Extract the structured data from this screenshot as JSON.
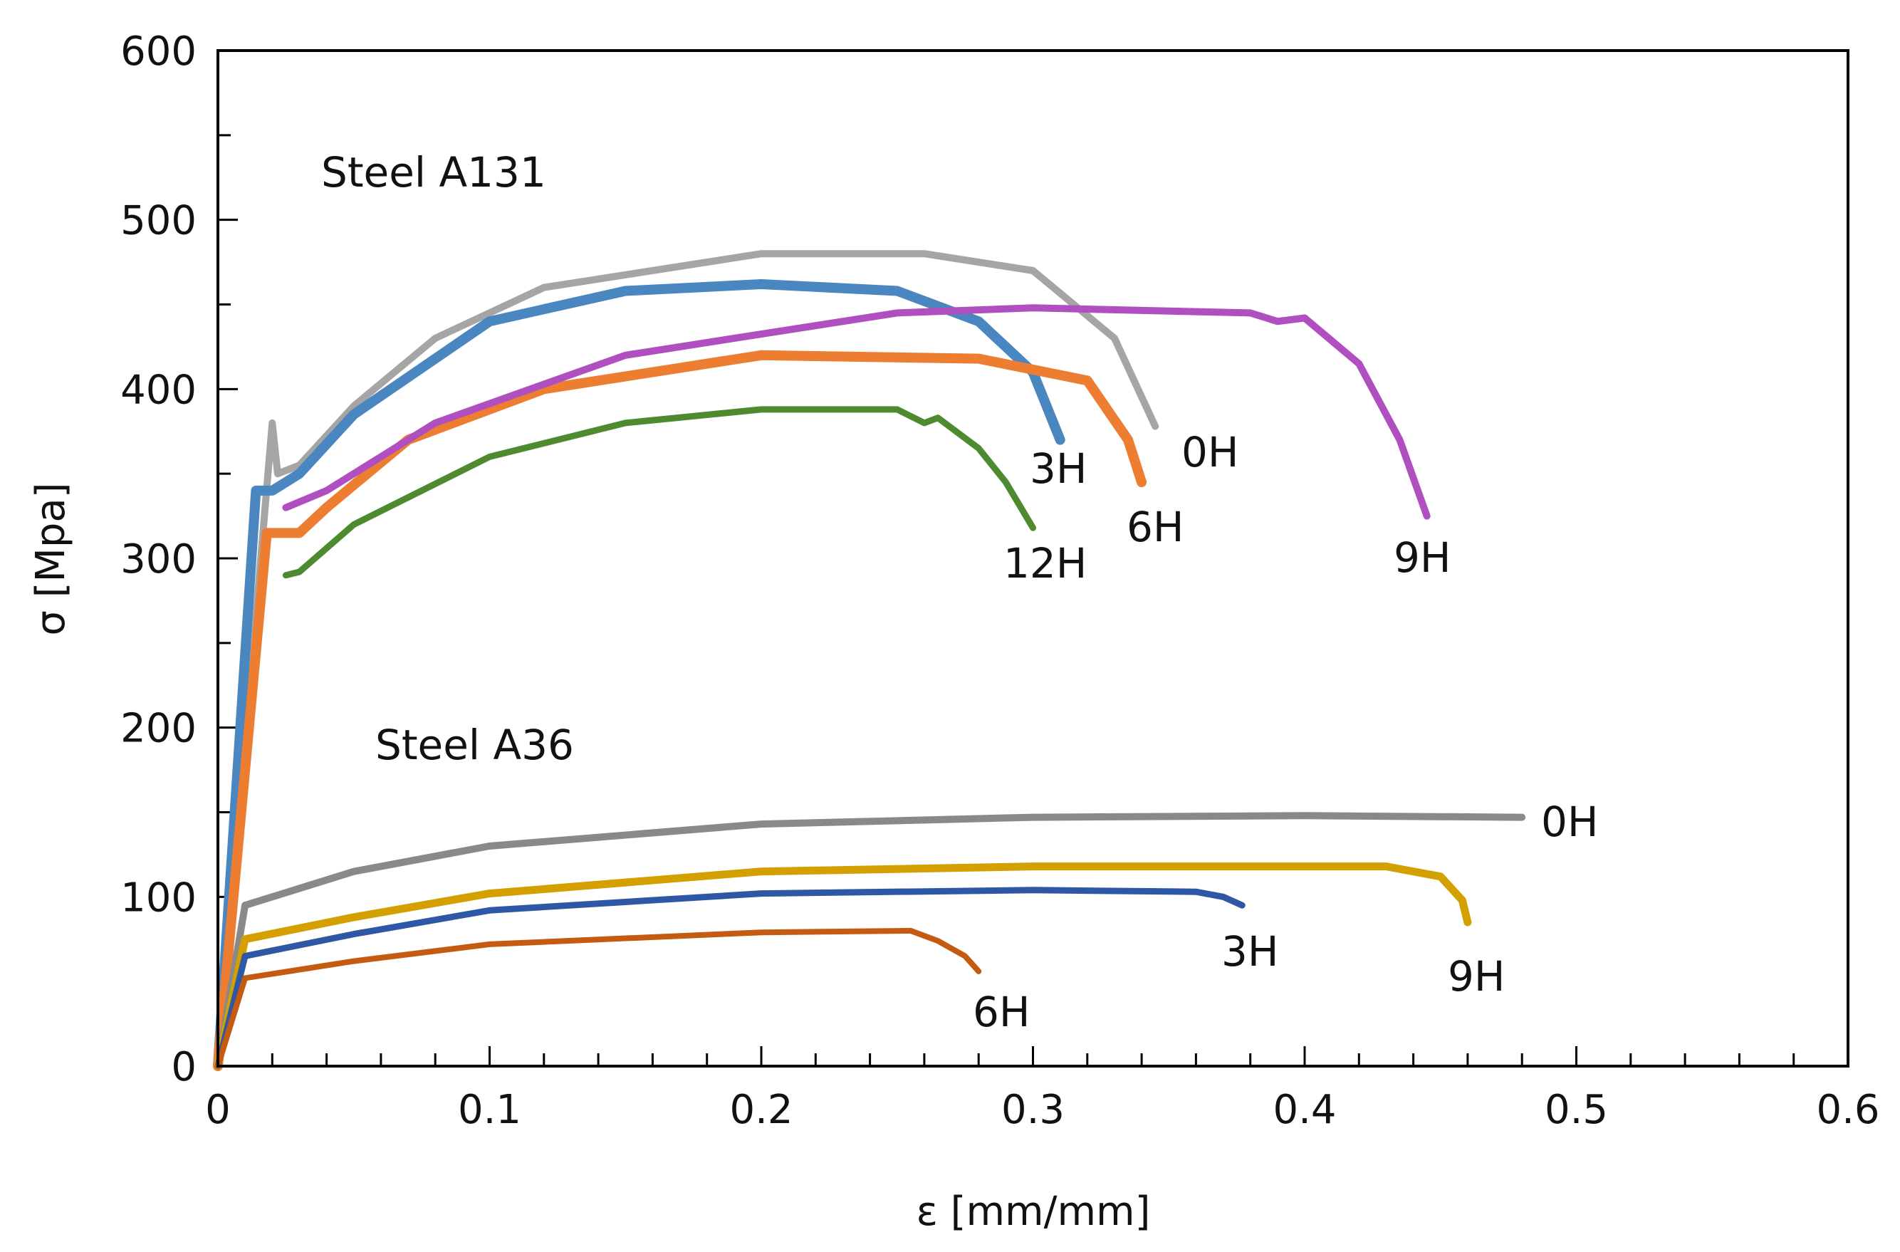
{
  "chart_data": {
    "type": "line",
    "title": "",
    "xlabel": "ε [mm/mm]",
    "ylabel": "σ [Mpa]",
    "xlim": [
      0,
      0.6
    ],
    "ylim": [
      0,
      600
    ],
    "xticks": [
      "0",
      "0.1",
      "0.2",
      "0.3",
      "0.4",
      "0.5",
      "0.6"
    ],
    "yticks": [
      "0",
      "100",
      "200",
      "300",
      "400",
      "500",
      "600"
    ],
    "grid": false,
    "legend": "none (inline curve labels)",
    "group_labels": [
      "Steel A131",
      "Steel A36"
    ],
    "series": [
      {
        "name": "A131 0H",
        "label": "0H",
        "color": "#a5a5a5",
        "points": [
          [
            0,
            0
          ],
          [
            0.02,
            380
          ],
          [
            0.022,
            350
          ],
          [
            0.03,
            355
          ],
          [
            0.05,
            390
          ],
          [
            0.08,
            430
          ],
          [
            0.12,
            460
          ],
          [
            0.2,
            480
          ],
          [
            0.26,
            480
          ],
          [
            0.3,
            470
          ],
          [
            0.33,
            430
          ],
          [
            0.345,
            378
          ]
        ]
      },
      {
        "name": "A131 3H",
        "label": "3H",
        "color": "#4a86c0",
        "points": [
          [
            0,
            0
          ],
          [
            0.014,
            340
          ],
          [
            0.02,
            340
          ],
          [
            0.03,
            350
          ],
          [
            0.05,
            385
          ],
          [
            0.1,
            440
          ],
          [
            0.15,
            458
          ],
          [
            0.2,
            462
          ],
          [
            0.25,
            458
          ],
          [
            0.28,
            440
          ],
          [
            0.3,
            410
          ],
          [
            0.31,
            370
          ]
        ]
      },
      {
        "name": "A131 6H",
        "label": "6H",
        "color": "#ed7d31",
        "points": [
          [
            0,
            0
          ],
          [
            0.018,
            315
          ],
          [
            0.03,
            315
          ],
          [
            0.04,
            330
          ],
          [
            0.07,
            370
          ],
          [
            0.12,
            400
          ],
          [
            0.2,
            420
          ],
          [
            0.28,
            418
          ],
          [
            0.32,
            405
          ],
          [
            0.335,
            370
          ],
          [
            0.34,
            345
          ]
        ]
      },
      {
        "name": "A131 9H",
        "label": "9H",
        "color": "#b04fc0",
        "points": [
          [
            0.025,
            330
          ],
          [
            0.04,
            340
          ],
          [
            0.08,
            380
          ],
          [
            0.15,
            420
          ],
          [
            0.25,
            445
          ],
          [
            0.3,
            448
          ],
          [
            0.38,
            445
          ],
          [
            0.39,
            440
          ],
          [
            0.4,
            442
          ],
          [
            0.42,
            415
          ],
          [
            0.435,
            370
          ],
          [
            0.445,
            325
          ]
        ]
      },
      {
        "name": "A131 12H",
        "label": "12H",
        "color": "#4e8a2f",
        "points": [
          [
            0.025,
            290
          ],
          [
            0.03,
            292
          ],
          [
            0.05,
            320
          ],
          [
            0.1,
            360
          ],
          [
            0.15,
            380
          ],
          [
            0.2,
            388
          ],
          [
            0.25,
            388
          ],
          [
            0.26,
            380
          ],
          [
            0.265,
            383
          ],
          [
            0.28,
            365
          ],
          [
            0.29,
            345
          ],
          [
            0.3,
            318
          ]
        ]
      },
      {
        "name": "A36 0H",
        "label": "0H",
        "color": "#898989",
        "points": [
          [
            0,
            0
          ],
          [
            0.01,
            95
          ],
          [
            0.05,
            115
          ],
          [
            0.1,
            130
          ],
          [
            0.2,
            143
          ],
          [
            0.3,
            147
          ],
          [
            0.4,
            148
          ],
          [
            0.48,
            147
          ]
        ]
      },
      {
        "name": "A36 9H",
        "label": "9H",
        "color": "#d4a000",
        "points": [
          [
            0,
            0
          ],
          [
            0.01,
            75
          ],
          [
            0.05,
            88
          ],
          [
            0.1,
            102
          ],
          [
            0.2,
            115
          ],
          [
            0.3,
            118
          ],
          [
            0.43,
            118
          ],
          [
            0.45,
            112
          ],
          [
            0.458,
            98
          ],
          [
            0.46,
            85
          ]
        ]
      },
      {
        "name": "A36 3H",
        "label": "3H",
        "color": "#2e57a5",
        "points": [
          [
            0,
            0
          ],
          [
            0.01,
            65
          ],
          [
            0.05,
            78
          ],
          [
            0.1,
            92
          ],
          [
            0.2,
            102
          ],
          [
            0.3,
            104
          ],
          [
            0.36,
            103
          ],
          [
            0.37,
            100
          ],
          [
            0.377,
            95
          ]
        ]
      },
      {
        "name": "A36 6H",
        "label": "6H",
        "color": "#c55a11",
        "points": [
          [
            0,
            0
          ],
          [
            0.01,
            52
          ],
          [
            0.05,
            62
          ],
          [
            0.1,
            72
          ],
          [
            0.2,
            79
          ],
          [
            0.255,
            80
          ],
          [
            0.265,
            74
          ],
          [
            0.275,
            65
          ],
          [
            0.28,
            56
          ]
        ]
      }
    ]
  }
}
